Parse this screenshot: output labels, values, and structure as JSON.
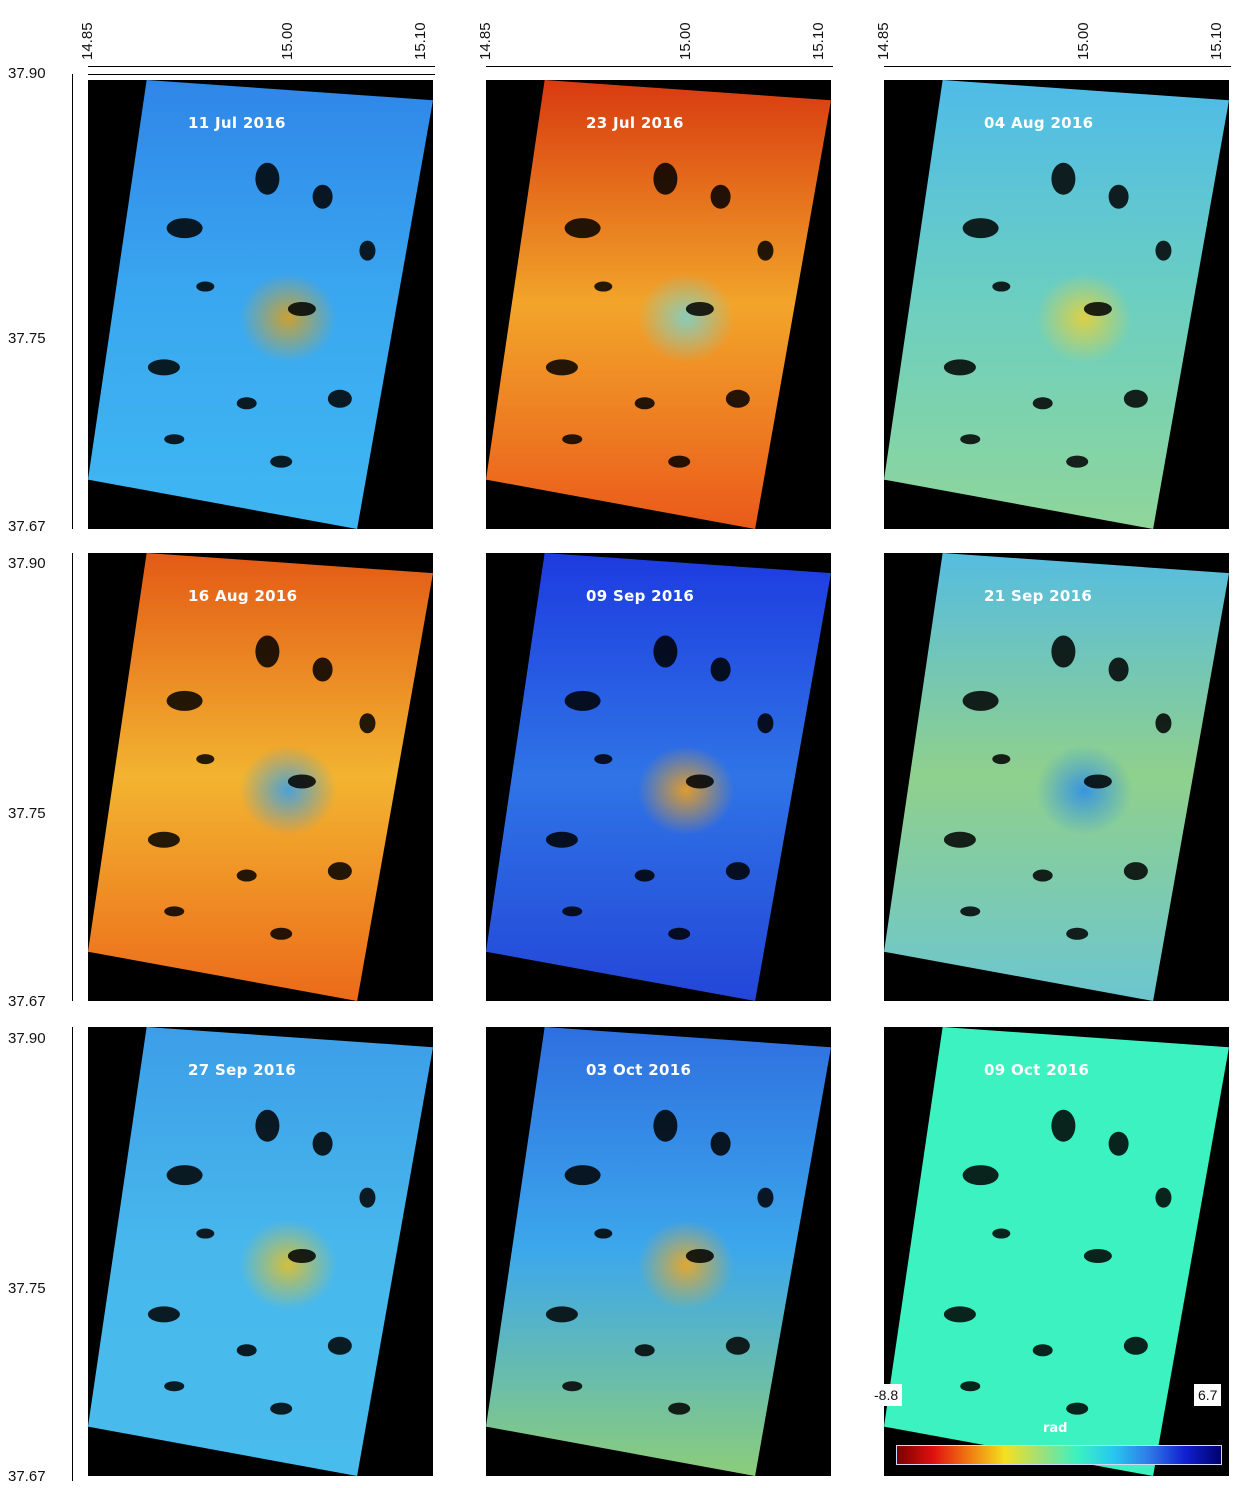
{
  "lon_ticks": [
    "14.85",
    "15.00",
    "15.10"
  ],
  "lat_ticks": [
    "37.90",
    "37.75",
    "37.67"
  ],
  "panels": [
    {
      "date": "11 Jul 2016",
      "base": "#3aa8f0",
      "top": "#2f86e8",
      "bottom": "#3fb7f2",
      "spot": "#d9a020"
    },
    {
      "date": "23 Jul 2016",
      "base": "#f2a52a",
      "top": "#d83a10",
      "bottom": "#ea5a1a",
      "spot": "#7fd0c8"
    },
    {
      "date": "04 Aug 2016",
      "base": "#6ccfc0",
      "top": "#4fbbe8",
      "bottom": "#8fd69a",
      "spot": "#e8d03a"
    },
    {
      "date": "16 Aug 2016",
      "base": "#f2b430",
      "top": "#e35a16",
      "bottom": "#ec6a1a",
      "spot": "#3aa0e8"
    },
    {
      "date": "09 Sep 2016",
      "base": "#2f74e6",
      "top": "#1d3be0",
      "bottom": "#2346d8",
      "spot": "#f0a01c"
    },
    {
      "date": "21 Sep 2016",
      "base": "#8fd08c",
      "top": "#56bde0",
      "bottom": "#6cc6d0",
      "spot": "#2f8fe8"
    },
    {
      "date": "27 Sep 2016",
      "base": "#48b8ec",
      "top": "#3c9ee8",
      "bottom": "#48bcec",
      "spot": "#e2c02a"
    },
    {
      "date": "03 Oct 2016",
      "base": "#3ca8ec",
      "top": "#2e6fe0",
      "bottom": "#8ccd7a",
      "spot": "#f0a820"
    },
    {
      "date": "09 Oct 2016",
      "base": "#3cf2c0",
      "top": "#3cf2c0",
      "bottom": "#3cf2c0",
      "spot": "#3cf2c0"
    }
  ],
  "colorbar": {
    "min": "-8.8",
    "max": "6.7",
    "unit": "rad",
    "colors": [
      "#7a0000",
      "#e01010",
      "#f07a10",
      "#f4e020",
      "#9ee07a",
      "#3cf2c0",
      "#28c8f0",
      "#2e7ae8",
      "#1020d0",
      "#00006e"
    ]
  }
}
